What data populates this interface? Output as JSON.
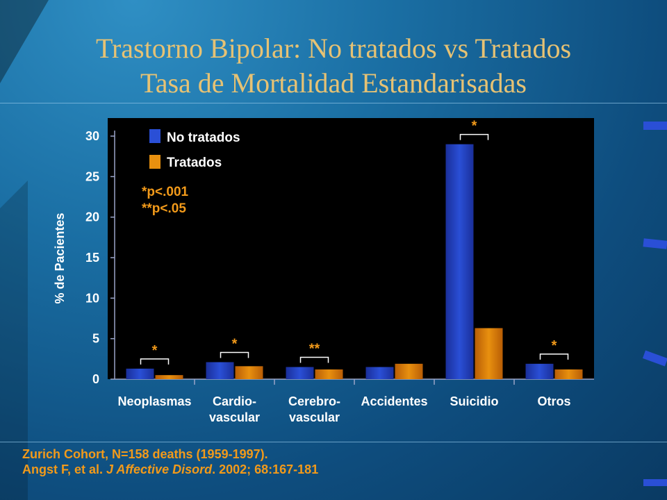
{
  "slide": {
    "title_line1": "Trastorno Bipolar: No tratados vs Tratados",
    "title_line2": "Tasa de Mortalidad Estandarisadas",
    "footer_line1": "Zurich Cohort, N=158 deaths (1959-1997).",
    "footer_line2_prefix": "Angst F, et al. ",
    "footer_line2_journal": "J Affective Disord",
    "footer_line2_suffix": ". 2002; 68:167-181"
  },
  "colors": {
    "title": "#e6c274",
    "accent_orange": "#f29a1a",
    "series_untreated": "#2a4fd6",
    "series_treated": "#e8900f",
    "plot_background": "#000000"
  },
  "chart_data": {
    "type": "bar",
    "ylabel": "% de Pacientes",
    "ylim": [
      0,
      30
    ],
    "yticks": [
      0,
      5,
      10,
      15,
      20,
      25,
      30
    ],
    "grid": false,
    "legend_position": "top-left",
    "categories": [
      [
        "Neoplasmas"
      ],
      [
        "Cardio-",
        "vascular"
      ],
      [
        "Cerebro-",
        "vascular"
      ],
      [
        "Accidentes"
      ],
      [
        "Suicidio"
      ],
      [
        "Otros"
      ]
    ],
    "series": [
      {
        "name": "No tratados",
        "values": [
          1.3,
          2.1,
          1.5,
          1.5,
          29.0,
          1.9
        ]
      },
      {
        "name": "Tratados",
        "values": [
          0.5,
          1.6,
          1.2,
          1.9,
          6.3,
          1.2
        ]
      }
    ],
    "significance": [
      "*",
      "*",
      "**",
      "",
      "*",
      "*"
    ],
    "notes": [
      "*p<.001",
      "**p<.05"
    ]
  }
}
